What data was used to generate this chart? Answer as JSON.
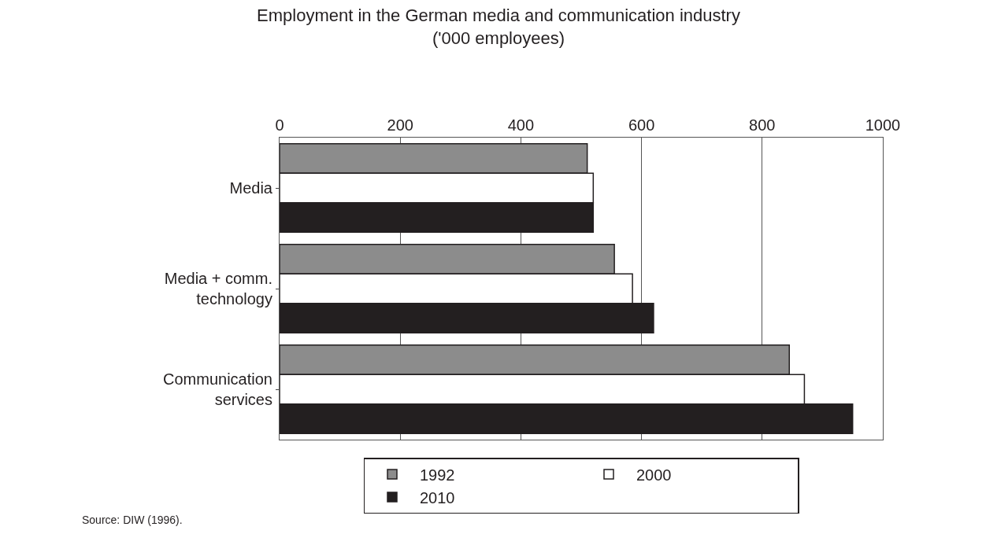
{
  "chart_data": {
    "type": "bar",
    "orientation": "horizontal",
    "title": "Employment in the German media and communication industry\n('000 employees)",
    "categories": [
      "Media",
      "Media + comm.\ntechnology",
      "Communication\nservices"
    ],
    "series": [
      {
        "name": "1992",
        "color": "#8c8c8c",
        "values": [
          510,
          555,
          845
        ]
      },
      {
        "name": "2000",
        "color": "#ffffff",
        "values": [
          520,
          585,
          870
        ]
      },
      {
        "name": "2010",
        "color": "#231f20",
        "values": [
          520,
          620,
          950
        ]
      }
    ],
    "xlim": [
      0,
      1000
    ],
    "xticks": [
      0,
      200,
      400,
      600,
      800,
      1000
    ],
    "grid": "x",
    "legend": "bottom",
    "annotations": [
      "Source: DIW (1996)."
    ]
  }
}
